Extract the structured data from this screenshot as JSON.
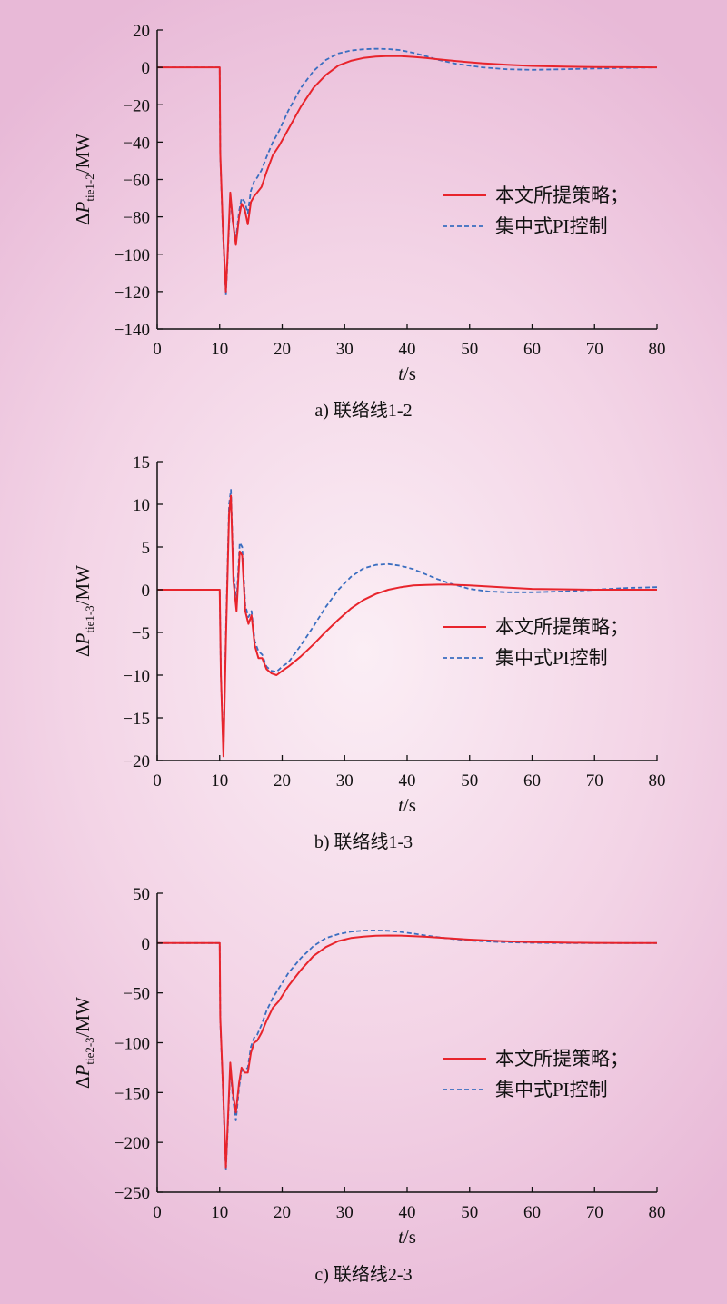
{
  "legend": {
    "series_a": "本文所提策略；",
    "series_b": "集中式PI控制"
  },
  "colors": {
    "series_a": "#e8242c",
    "series_b": "#3a6ec0",
    "axis": "#111111"
  },
  "chart_data": [
    {
      "type": "line",
      "caption": "a) 联络线1-2",
      "xlabel": {
        "var": "t",
        "unit": "/s"
      },
      "ylabel": {
        "prefix": "ΔP",
        "sub": "tie1-2",
        "unit": "/MW"
      },
      "xlim": [
        0,
        80
      ],
      "ylim": [
        -140,
        20
      ],
      "xticks": [
        0,
        10,
        20,
        30,
        40,
        50,
        60,
        70,
        80
      ],
      "yticks": [
        20,
        0,
        -20,
        -40,
        -60,
        -80,
        -100,
        -120,
        -140
      ],
      "ytick_labels": [
        "20",
        "0",
        "−20",
        "−40",
        "−60",
        "−80",
        "−100",
        "−120",
        "−140"
      ],
      "legend_position": "right",
      "series": [
        {
          "name": "本文所提策略；",
          "style": "solid",
          "x": [
            0,
            9.9,
            10.0,
            10.1,
            10.5,
            11.0,
            11.3,
            11.7,
            12.1,
            12.6,
            13.1,
            13.5,
            14.0,
            14.5,
            15.0,
            15.5,
            16.0,
            16.7,
            17.5,
            18.5,
            19.5,
            21,
            23,
            25,
            27,
            29,
            31,
            33,
            35,
            37,
            39,
            41,
            43,
            45,
            48,
            52,
            56,
            60,
            65,
            70,
            75,
            80
          ],
          "y": [
            0,
            0,
            0,
            -46,
            -85,
            -120,
            -98,
            -67,
            -82,
            -95,
            -80,
            -73,
            -76,
            -84,
            -72,
            -69,
            -67,
            -64,
            -56,
            -47,
            -42,
            -33,
            -21,
            -11,
            -4,
            1,
            3.5,
            5,
            5.8,
            6.1,
            6.0,
            5.6,
            5.0,
            4.3,
            3.3,
            2.2,
            1.4,
            0.8,
            0.4,
            0.2,
            0.1,
            0
          ]
        },
        {
          "name": "集中式PI控制",
          "style": "dashed",
          "x": [
            0,
            9.9,
            10.0,
            10.1,
            10.5,
            11.0,
            11.3,
            11.7,
            12.1,
            12.6,
            13.1,
            13.5,
            14.0,
            14.5,
            15.0,
            15.5,
            16.0,
            16.7,
            17.5,
            18.5,
            19.5,
            21,
            23,
            25,
            27,
            29,
            31,
            33,
            35,
            37,
            39,
            41,
            43,
            45,
            48,
            52,
            56,
            60,
            65,
            70,
            75,
            80
          ],
          "y": [
            0,
            0,
            0,
            -47,
            -87,
            -122,
            -100,
            -70,
            -83,
            -92,
            -77,
            -70,
            -72,
            -78,
            -66,
            -61,
            -59,
            -55,
            -48,
            -40,
            -34,
            -23,
            -11,
            -2,
            4,
            7.5,
            9,
            9.7,
            10,
            9.8,
            9.2,
            7.8,
            6,
            4,
            1.8,
            0,
            -1,
            -1.3,
            -1,
            -0.6,
            -0.3,
            0
          ]
        }
      ]
    },
    {
      "type": "line",
      "caption": "b) 联络线1-3",
      "xlabel": {
        "var": "t",
        "unit": "/s"
      },
      "ylabel": {
        "prefix": "ΔP",
        "sub": "tie1-3",
        "unit": "/MW"
      },
      "xlim": [
        0,
        80
      ],
      "ylim": [
        -20,
        15
      ],
      "xticks": [
        0,
        10,
        20,
        30,
        40,
        50,
        60,
        70,
        80
      ],
      "yticks": [
        15,
        10,
        5,
        0,
        -5,
        -10,
        -15,
        -20
      ],
      "ytick_labels": [
        "15",
        "10",
        "5",
        "0",
        "−5",
        "−10",
        "−15",
        "−20"
      ],
      "legend_position": "right",
      "series": [
        {
          "name": "本文所提策略；",
          "style": "solid",
          "x": [
            0,
            9.9,
            10.0,
            10.2,
            10.6,
            11.0,
            11.5,
            11.8,
            12.2,
            12.7,
            13.2,
            13.6,
            14.1,
            14.6,
            15.1,
            15.6,
            16.2,
            16.8,
            17.5,
            18.3,
            19.1,
            20,
            21,
            23,
            25,
            27,
            29,
            31,
            33,
            35,
            37,
            39,
            41,
            43,
            45,
            47,
            50,
            55,
            60,
            70,
            80
          ],
          "y": [
            0,
            0,
            0,
            -10,
            -19.5,
            -6,
            9,
            11,
            1,
            -2.5,
            4.5,
            4,
            -2.5,
            -4,
            -3,
            -6.5,
            -8,
            -8,
            -9.3,
            -9.8,
            -10,
            -9.5,
            -9,
            -7.8,
            -6.4,
            -4.9,
            -3.5,
            -2.2,
            -1.2,
            -0.5,
            0,
            0.3,
            0.5,
            0.55,
            0.6,
            0.6,
            0.5,
            0.3,
            0.1,
            0,
            0
          ]
        },
        {
          "name": "集中式PI控制",
          "style": "dashed",
          "x": [
            0,
            9.9,
            10.0,
            10.2,
            10.6,
            11.0,
            11.5,
            11.8,
            12.2,
            12.7,
            13.2,
            13.6,
            14.1,
            14.6,
            15.1,
            15.6,
            16.2,
            16.8,
            17.5,
            18.3,
            19.1,
            20,
            21,
            23,
            25,
            27,
            29,
            31,
            33,
            35,
            37,
            39,
            41,
            43,
            45,
            47,
            50,
            53,
            56,
            60,
            65,
            70,
            75,
            80
          ],
          "y": [
            0,
            0,
            0,
            -10,
            -19,
            -5,
            10,
            11.7,
            2,
            -1.5,
            5.5,
            5,
            -1.8,
            -3.2,
            -2.5,
            -6,
            -7.2,
            -7.6,
            -9,
            -9.5,
            -9.6,
            -9,
            -8.5,
            -6.5,
            -4.3,
            -2,
            0,
            1.5,
            2.5,
            2.9,
            3,
            2.8,
            2.4,
            1.8,
            1.2,
            0.7,
            0.1,
            -0.2,
            -0.3,
            -0.3,
            -0.2,
            0,
            0.2,
            0.3
          ]
        }
      ]
    },
    {
      "type": "line",
      "caption": "c) 联络线2-3",
      "xlabel": {
        "var": "t",
        "unit": "/s"
      },
      "ylabel": {
        "prefix": "ΔP",
        "sub": "tie2-3",
        "unit": "/MW"
      },
      "xlim": [
        0,
        80
      ],
      "ylim": [
        -250,
        50
      ],
      "xticks": [
        0,
        10,
        20,
        30,
        40,
        50,
        60,
        70,
        80
      ],
      "yticks": [
        50,
        0,
        -50,
        -100,
        -150,
        -200,
        -250
      ],
      "ytick_labels": [
        "50",
        "0",
        "−50",
        "−100",
        "−150",
        "−200",
        "−250"
      ],
      "legend_position": "right",
      "series": [
        {
          "name": "本文所提策略；",
          "style": "solid",
          "x": [
            0,
            9.9,
            10.0,
            10.1,
            10.5,
            11.0,
            11.3,
            11.7,
            12.1,
            12.6,
            13.1,
            13.5,
            14.0,
            14.5,
            15.0,
            15.5,
            16.0,
            16.7,
            17.5,
            18.5,
            19.5,
            21,
            23,
            25,
            27,
            29,
            31,
            33,
            35,
            37,
            39,
            41,
            43,
            46,
            50,
            55,
            60,
            65,
            70,
            75,
            80
          ],
          "y": [
            0,
            0,
            0,
            -75,
            -140,
            -225,
            -180,
            -120,
            -150,
            -170,
            -140,
            -125,
            -130,
            -130,
            -110,
            -100,
            -98,
            -90,
            -78,
            -65,
            -58,
            -43,
            -27,
            -13,
            -4,
            2,
            5,
            6.5,
            7.3,
            7.6,
            7.5,
            7,
            6.3,
            5,
            3.5,
            2,
            1,
            0.5,
            0.2,
            0.1,
            0
          ]
        },
        {
          "name": "集中式PI控制",
          "style": "dashed",
          "x": [
            0,
            9.9,
            10.0,
            10.1,
            10.5,
            11.0,
            11.3,
            11.7,
            12.1,
            12.6,
            13.1,
            13.5,
            14.0,
            14.5,
            15.0,
            15.5,
            16.0,
            16.7,
            17.5,
            18.5,
            19.5,
            21,
            23,
            25,
            27,
            29,
            31,
            33,
            35,
            37,
            39,
            41,
            43,
            46,
            50,
            55,
            60,
            65,
            70,
            75,
            80
          ],
          "y": [
            0,
            0,
            0,
            -77,
            -143,
            -228,
            -185,
            -125,
            -155,
            -178,
            -145,
            -128,
            -128,
            -125,
            -104,
            -95,
            -92,
            -82,
            -68,
            -55,
            -45,
            -30,
            -15,
            -3,
            5,
            9,
            11.5,
            12.5,
            12.7,
            12.3,
            11.2,
            9.5,
            7.6,
            5,
            2.5,
            1,
            0.3,
            0,
            0,
            0,
            0
          ]
        }
      ]
    }
  ]
}
